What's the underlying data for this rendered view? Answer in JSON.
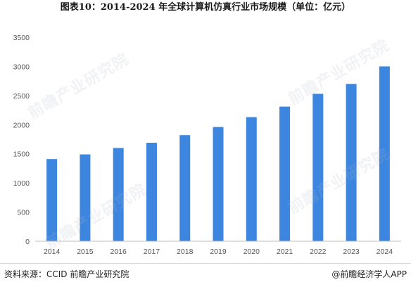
{
  "title": "图表10：2014-2024 年全球计算机仿真行业市场规模（单位：亿元）",
  "watermark_text": "前瞻产业研究院",
  "footer": {
    "source": "资料来源：CCID 前瞻产业研究院",
    "brand": "@前瞻经济学人APP",
    "brand_icon": "at-sign-icon"
  },
  "colors": {
    "bar": "#3c86e0",
    "axis": "#bfbfbf",
    "text": "#555555"
  },
  "chart_data": {
    "type": "bar",
    "categories": [
      "2014",
      "2015",
      "2016",
      "2017",
      "2018",
      "2019",
      "2020",
      "2021",
      "2022",
      "2023",
      "2024"
    ],
    "values": [
      1410,
      1490,
      1600,
      1690,
      1820,
      1960,
      2130,
      2310,
      2530,
      2700,
      3000
    ],
    "yticks": [
      0,
      500,
      1000,
      1500,
      2000,
      2500,
      3000,
      3500
    ],
    "ylim": [
      0,
      3500
    ],
    "grid": false,
    "legend": "none"
  }
}
